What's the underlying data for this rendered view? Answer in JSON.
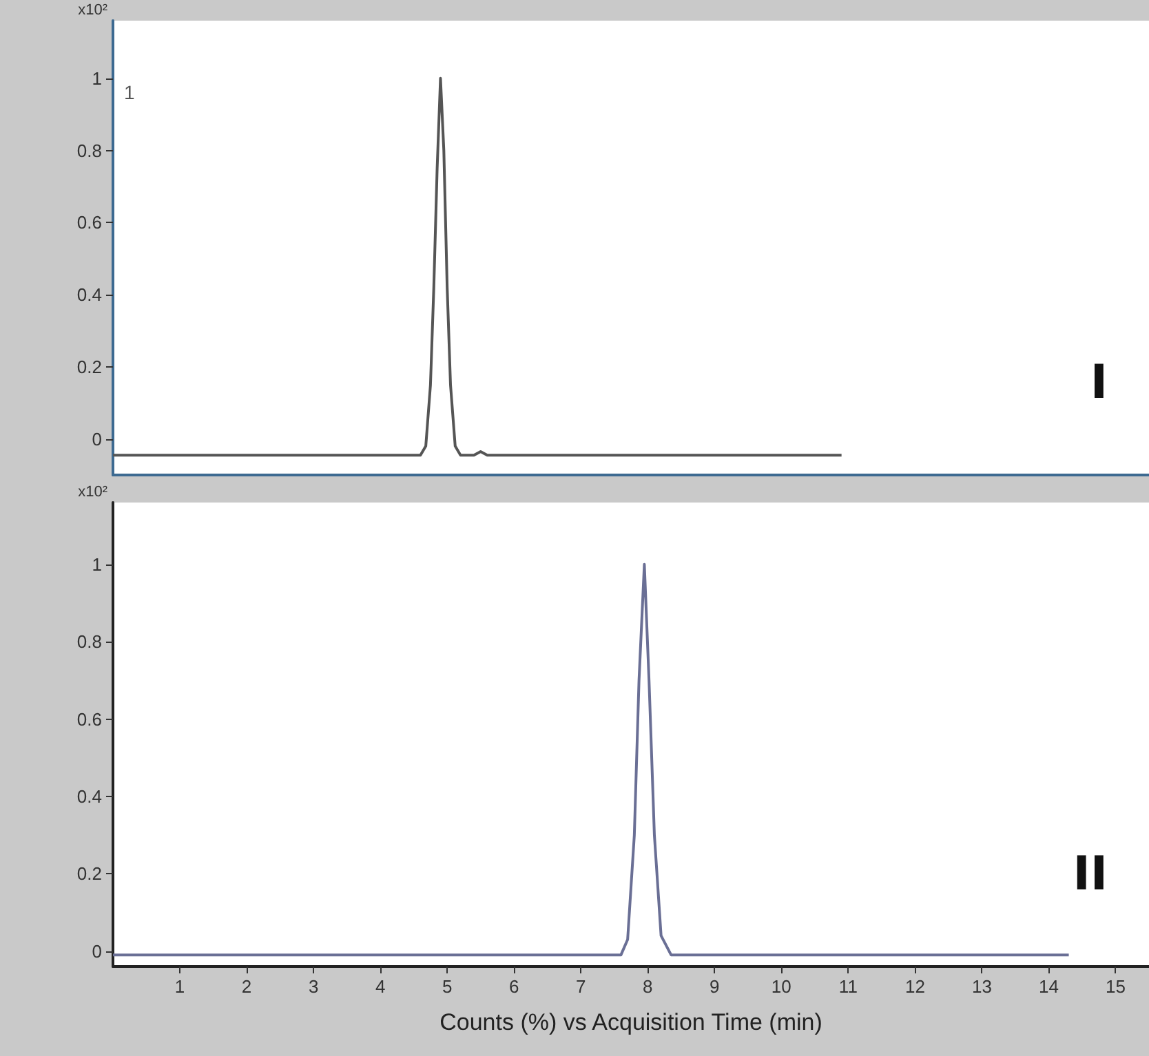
{
  "chart_data": [
    {
      "type": "line",
      "ylabel": "x10²",
      "annotations": [
        "1",
        "I"
      ],
      "xlim": [
        0,
        15.5
      ],
      "ylim": [
        -0.1,
        1.16
      ],
      "yticks": [
        0,
        0.2,
        0.4,
        0.6,
        0.8,
        1
      ],
      "tick_labels": "y",
      "series": [
        {
          "color": "#555555",
          "x": [
            0,
            4.6,
            4.68,
            4.75,
            4.8,
            4.85,
            4.9,
            4.95,
            5.0,
            5.05,
            5.12,
            5.2,
            5.4,
            5.5,
            5.6,
            10.9
          ],
          "values": [
            -0.045,
            -0.045,
            -0.02,
            0.15,
            0.42,
            0.75,
            1.0,
            0.8,
            0.42,
            0.15,
            -0.02,
            -0.045,
            -0.045,
            -0.035,
            -0.045,
            -0.045
          ]
        }
      ]
    },
    {
      "type": "line",
      "ylabel": "x10²",
      "xlabel": "Counts (%) vs Acquisition Time (min)",
      "annotations": [
        "II"
      ],
      "xlim": [
        0,
        15.5
      ],
      "xticks": [
        1,
        2,
        3,
        4,
        5,
        6,
        7,
        8,
        9,
        10,
        11,
        12,
        13,
        14,
        15
      ],
      "ylim": [
        -0.04,
        1.16
      ],
      "yticks": [
        0,
        0.2,
        0.4,
        0.6,
        0.8,
        1
      ],
      "series": [
        {
          "color": "#6a6f95",
          "x": [
            0,
            7.6,
            7.7,
            7.8,
            7.87,
            7.95,
            8.02,
            8.1,
            8.2,
            8.35,
            14.3
          ],
          "values": [
            -0.01,
            -0.01,
            0.03,
            0.3,
            0.7,
            1.0,
            0.7,
            0.3,
            0.04,
            -0.01,
            -0.01
          ]
        }
      ]
    }
  ]
}
